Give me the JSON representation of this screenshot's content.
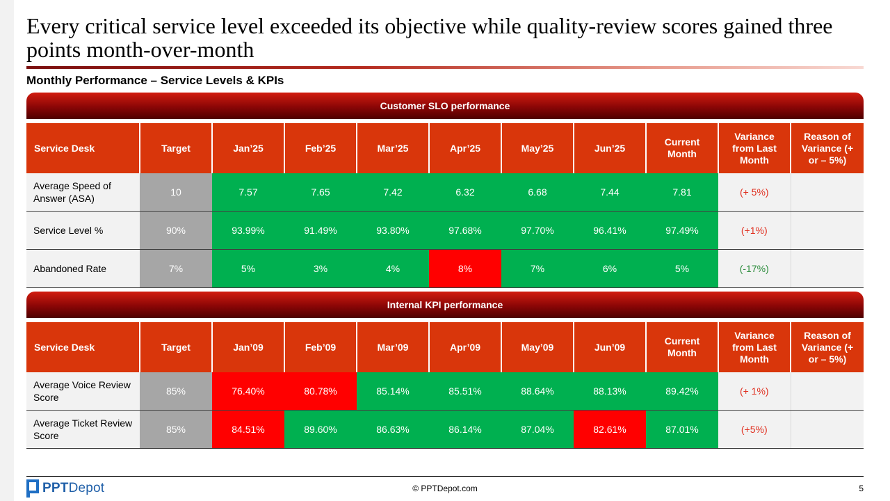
{
  "slide": {
    "title": "Every critical service level exceeded its objective while quality-review scores gained three points month-over-month",
    "subtitle": "Monthly Performance – Service Levels & KPIs"
  },
  "slo": {
    "section_title": "Customer SLO performance",
    "headers": [
      "Service Desk",
      "Target",
      "Jan’25",
      "Feb’25",
      "Mar’25",
      "Apr’25",
      "May’25",
      "Jun’25",
      "Current Month",
      "Variance from Last Month",
      "Reason of Variance (+ or – 5%)"
    ],
    "rows": [
      {
        "label": "Average Speed of Answer (ASA)",
        "target": "10",
        "months": [
          "7.57",
          "7.65",
          "7.42",
          "6.32",
          "6.68",
          "7.44"
        ],
        "current": "7.81",
        "variance": "(+ 5%)",
        "reason": ""
      },
      {
        "label": "Service Level %",
        "target": "90%",
        "months": [
          "93.99%",
          "91.49%",
          "93.80%",
          "97.68%",
          "97.70%",
          "96.41%"
        ],
        "current": "97.49%",
        "variance": "(+1%)",
        "reason": ""
      },
      {
        "label": "Abandoned Rate",
        "target": "7%",
        "months": [
          "5%",
          "3%",
          "4%",
          "8%",
          "7%",
          "6%"
        ],
        "current": "5%",
        "variance": "(-17%)",
        "reason": ""
      }
    ],
    "status_colors": {
      "met": "#00b050",
      "missed": "#ff0000",
      "target": "#a6a6a6"
    }
  },
  "kpi": {
    "section_title": "Internal KPI performance",
    "headers": [
      "Service Desk",
      "Target",
      "Jan’09",
      "Feb’09",
      "Mar’09",
      "Apr’09",
      "May’09",
      "Jun’09",
      "Current Month",
      "Variance from Last Month",
      "Reason of Variance (+ or – 5%)"
    ],
    "rows": [
      {
        "label": "Average Voice Review Score",
        "target": "85%",
        "months": [
          "76.40%",
          "80.78%",
          "85.14%",
          "85.51%",
          "88.64%",
          "88.13%"
        ],
        "current": "89.42%",
        "variance": "(+ 1%)",
        "reason": ""
      },
      {
        "label": "Average Ticket Review Score",
        "target": "85%",
        "months": [
          "84.51%",
          "89.60%",
          "86.63%",
          "86.14%",
          "87.04%",
          "82.61%"
        ],
        "current": "87.01%",
        "variance": "(+5%)",
        "reason": ""
      }
    ]
  },
  "footer": {
    "logo_text_bold": "PPT",
    "logo_text_rest": "Depot",
    "logo_icon": "pptdepot-logo-icon",
    "copyright": "© PPTDepot.com",
    "page_number": "5"
  }
}
